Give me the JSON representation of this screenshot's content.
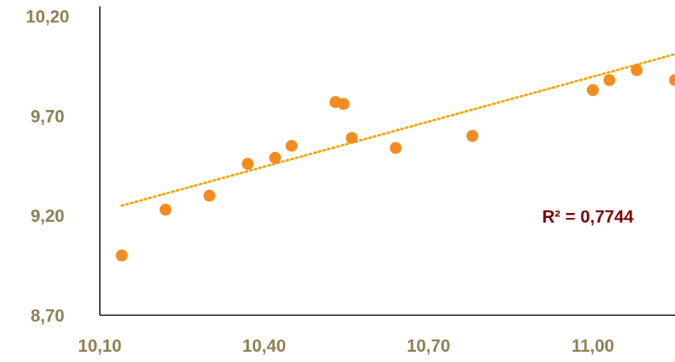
{
  "chart_data": {
    "type": "scatter",
    "title": "",
    "xlabel": "",
    "ylabel": "",
    "xlim": [
      10.1,
      11.15
    ],
    "ylim": [
      8.7,
      10.25
    ],
    "x_ticks": [
      "10,10",
      "10,40",
      "10,70",
      "11,00"
    ],
    "x_tick_values": [
      10.1,
      10.4,
      10.7,
      11.0
    ],
    "y_ticks": [
      "8,70",
      "9,20",
      "9,70",
      "10,20"
    ],
    "y_tick_values": [
      8.7,
      9.2,
      9.7,
      10.2
    ],
    "grid": false,
    "legend": "none",
    "points": [
      {
        "x": 10.14,
        "y": 9.0
      },
      {
        "x": 10.22,
        "y": 9.23
      },
      {
        "x": 10.3,
        "y": 9.3
      },
      {
        "x": 10.37,
        "y": 9.46
      },
      {
        "x": 10.42,
        "y": 9.49
      },
      {
        "x": 10.45,
        "y": 9.55
      },
      {
        "x": 10.53,
        "y": 9.77
      },
      {
        "x": 10.545,
        "y": 9.76
      },
      {
        "x": 10.56,
        "y": 9.59
      },
      {
        "x": 10.64,
        "y": 9.54
      },
      {
        "x": 10.78,
        "y": 9.6
      },
      {
        "x": 11.0,
        "y": 9.83
      },
      {
        "x": 11.03,
        "y": 9.88
      },
      {
        "x": 11.08,
        "y": 9.93
      },
      {
        "x": 11.15,
        "y": 9.88
      }
    ],
    "trendline": {
      "type": "linear",
      "style": "dotted",
      "x_start": 10.14,
      "y_start": 9.25,
      "x_end": 11.15,
      "y_end": 10.01
    },
    "annotations": [
      {
        "text": "R² = 0,7744"
      }
    ],
    "colors": {
      "points": "#f58a1f",
      "trendline": "#f5a300",
      "tick_labels": "#8b7d4f",
      "annotation": "#7a0000",
      "axis": "#000000"
    }
  }
}
